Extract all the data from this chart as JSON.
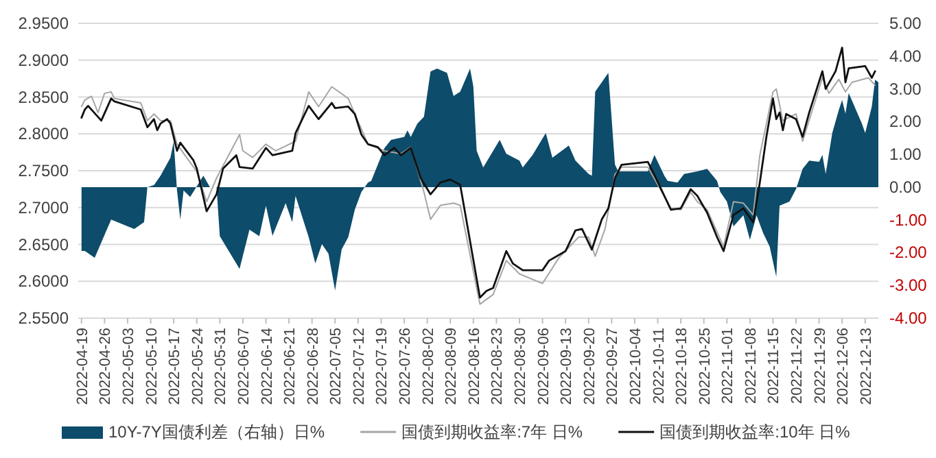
{
  "chart_data": {
    "type": "line",
    "xlim": [
      "2022-04-18",
      "2022-12-17"
    ],
    "xticks": [
      "2022-04-19",
      "2022-04-26",
      "2022-05-03",
      "2022-05-10",
      "2022-05-17",
      "2022-05-24",
      "2022-05-31",
      "2022-06-07",
      "2022-06-14",
      "2022-06-21",
      "2022-06-28",
      "2022-07-05",
      "2022-07-12",
      "2022-07-19",
      "2022-07-26",
      "2022-08-02",
      "2022-08-09",
      "2022-08-16",
      "2022-08-23",
      "2022-08-30",
      "2022-09-06",
      "2022-09-13",
      "2022-09-20",
      "2022-09-27",
      "2022-10-04",
      "2022-10-11",
      "2022-10-18",
      "2022-10-25",
      "2022-11-01",
      "2022-11-08",
      "2022-11-15",
      "2022-11-22",
      "2022-11-29",
      "2022-12-06",
      "2022-12-13"
    ],
    "ylim": [
      2.55,
      2.95
    ],
    "yticks": [
      {
        "value": 2.55,
        "label": "2.5500"
      },
      {
        "value": 2.6,
        "label": "2.6000"
      },
      {
        "value": 2.65,
        "label": "2.6500"
      },
      {
        "value": 2.7,
        "label": "2.7000"
      },
      {
        "value": 2.75,
        "label": "2.7500"
      },
      {
        "value": 2.8,
        "label": "2.8000"
      },
      {
        "value": 2.85,
        "label": "2.8500"
      },
      {
        "value": 2.9,
        "label": "2.9000"
      },
      {
        "value": 2.95,
        "label": "2.9500"
      }
    ],
    "y2lim": [
      -4,
      5
    ],
    "y2ticks": [
      {
        "value": -4,
        "label": "-4.00"
      },
      {
        "value": -3,
        "label": "-3.00"
      },
      {
        "value": -2,
        "label": "-2.00"
      },
      {
        "value": -1,
        "label": "-1.00"
      },
      {
        "value": 0,
        "label": "0.00"
      },
      {
        "value": 1,
        "label": "1.00"
      },
      {
        "value": 2,
        "label": "2.00"
      },
      {
        "value": 3,
        "label": "3.00"
      },
      {
        "value": 4,
        "label": "4.00"
      },
      {
        "value": 5,
        "label": "5.00"
      }
    ],
    "grid": "y",
    "legend": "bottom",
    "series": [
      {
        "name": "10Y-7Y国债利差（右轴）日%",
        "type": "area",
        "axis": "y2",
        "color": "#0d4c6a",
        "x": [
          "2022-04-19",
          "2022-04-20",
          "2022-04-23",
          "2022-04-28",
          "2022-05-05",
          "2022-05-08",
          "2022-05-09",
          "2022-05-11",
          "2022-05-13",
          "2022-05-16",
          "2022-05-17",
          "2022-05-18",
          "2022-05-19",
          "2022-05-20",
          "2022-05-22",
          "2022-05-26",
          "2022-05-28",
          "2022-05-30",
          "2022-05-31",
          "2022-06-06",
          "2022-06-09",
          "2022-06-12",
          "2022-06-14",
          "2022-06-16",
          "2022-06-20",
          "2022-06-22",
          "2022-06-23",
          "2022-06-27",
          "2022-06-29",
          "2022-07-01",
          "2022-07-03",
          "2022-07-05",
          "2022-07-07",
          "2022-07-09",
          "2022-07-11",
          "2022-07-13",
          "2022-07-15",
          "2022-07-16",
          "2022-07-20",
          "2022-07-22",
          "2022-07-26",
          "2022-07-27",
          "2022-07-28",
          "2022-07-30",
          "2022-08-01",
          "2022-08-03",
          "2022-08-05",
          "2022-08-08",
          "2022-08-10",
          "2022-08-12",
          "2022-08-15",
          "2022-08-16",
          "2022-08-17",
          "2022-08-19",
          "2022-08-24",
          "2022-08-26",
          "2022-08-30",
          "2022-08-31",
          "2022-09-03",
          "2022-09-07",
          "2022-09-09",
          "2022-09-14",
          "2022-09-16",
          "2022-09-20",
          "2022-09-21",
          "2022-09-22",
          "2022-09-26",
          "2022-09-28",
          "2022-09-29",
          "2022-10-08",
          "2022-10-10",
          "2022-10-13",
          "2022-10-14",
          "2022-10-17",
          "2022-10-19",
          "2022-10-23",
          "2022-10-26",
          "2022-10-29",
          "2022-10-30",
          "2022-11-01",
          "2022-11-03",
          "2022-11-06",
          "2022-11-08",
          "2022-11-10",
          "2022-11-12",
          "2022-11-14",
          "2022-11-16",
          "2022-11-17",
          "2022-11-20",
          "2022-11-22",
          "2022-11-24",
          "2022-11-26",
          "2022-11-29",
          "2022-11-30",
          "2022-12-01",
          "2022-12-03",
          "2022-12-05",
          "2022-12-06",
          "2022-12-07",
          "2022-12-08",
          "2022-12-12",
          "2022-12-13",
          "2022-12-15",
          "2022-12-16",
          "2022-12-17"
        ],
        "values": [
          -1.95,
          -1.95,
          -2.16,
          -0.99,
          -1.28,
          -1.07,
          0,
          0.06,
          0.35,
          0.9,
          1.4,
          -0.1,
          -0.99,
          -0.1,
          -0.3,
          0.35,
          0,
          0,
          -1.5,
          -2.5,
          -1.3,
          -1.5,
          -0.57,
          -1.49,
          -0.49,
          -1.07,
          -0.27,
          -1.53,
          -2.33,
          -1.74,
          -2.03,
          -3.16,
          -1.9,
          -1.53,
          -0.69,
          -0.15,
          0.14,
          0.19,
          1.19,
          1.44,
          1.53,
          1.73,
          1.53,
          1.94,
          2.15,
          3.53,
          3.62,
          3.49,
          2.78,
          2.91,
          3.62,
          3.07,
          1.11,
          0.6,
          1.44,
          1.02,
          0.81,
          0.6,
          0.98,
          1.65,
          0.9,
          1.27,
          0.81,
          0.4,
          0.35,
          2.91,
          3.49,
          0.69,
          0.48,
          0.48,
          0.98,
          0.35,
          0.19,
          0.14,
          0.4,
          0.48,
          0.56,
          0.19,
          -0.15,
          -0.44,
          -1.2,
          -0.86,
          -1.61,
          -0.86,
          -1.4,
          -1.82,
          -2.74,
          -0.57,
          -0.44,
          -0.06,
          0.56,
          0.81,
          0.77,
          0.98,
          0.4,
          1.65,
          2.36,
          2.66,
          2.24,
          2.87,
          1.94,
          1.65,
          2.45,
          3.28,
          3.2
        ]
      },
      {
        "name": "国债到期收益率:7年 日%",
        "color": "#a6a6a6",
        "x": [
          "2022-04-19",
          "2022-04-20",
          "2022-04-22",
          "2022-04-24",
          "2022-04-26",
          "2022-04-28",
          "2022-04-29",
          "2022-05-07",
          "2022-05-09",
          "2022-05-11",
          "2022-05-13",
          "2022-05-16",
          "2022-05-18",
          "2022-05-24",
          "2022-05-27",
          "2022-05-30",
          "2022-06-06",
          "2022-06-07",
          "2022-06-10",
          "2022-06-14",
          "2022-06-17",
          "2022-06-23",
          "2022-06-27",
          "2022-06-30",
          "2022-07-04",
          "2022-07-09",
          "2022-07-11",
          "2022-07-15",
          "2022-07-20",
          "2022-07-25",
          "2022-07-28",
          "2022-08-01",
          "2022-08-03",
          "2022-08-06",
          "2022-08-10",
          "2022-08-12",
          "2022-08-18",
          "2022-08-22",
          "2022-08-26",
          "2022-08-30",
          "2022-09-06",
          "2022-09-11",
          "2022-09-17",
          "2022-09-20",
          "2022-09-22",
          "2022-09-25",
          "2022-09-28",
          "2022-09-30",
          "2022-10-08",
          "2022-10-15",
          "2022-10-18",
          "2022-10-21",
          "2022-10-23",
          "2022-10-26",
          "2022-10-31",
          "2022-11-03",
          "2022-11-06",
          "2022-11-09",
          "2022-11-11",
          "2022-11-15",
          "2022-11-16",
          "2022-11-18",
          "2022-11-22",
          "2022-11-24",
          "2022-11-27",
          "2022-11-30",
          "2022-12-02",
          "2022-12-05",
          "2022-12-07",
          "2022-12-09",
          "2022-12-14",
          "2022-12-16"
        ],
        "values": [
          2.837,
          2.846,
          2.851,
          2.829,
          2.855,
          2.857,
          2.848,
          2.842,
          2.818,
          2.827,
          2.818,
          2.818,
          2.786,
          2.749,
          2.708,
          2.74,
          2.799,
          2.777,
          2.768,
          2.786,
          2.777,
          2.79,
          2.857,
          2.837,
          2.864,
          2.848,
          2.827,
          2.786,
          2.777,
          2.773,
          2.782,
          2.721,
          2.684,
          2.703,
          2.706,
          2.703,
          2.569,
          2.582,
          2.628,
          2.61,
          2.597,
          2.632,
          2.66,
          2.66,
          2.634,
          2.671,
          2.745,
          2.755,
          2.755,
          2.699,
          2.697,
          2.721,
          2.708,
          2.697,
          2.647,
          2.708,
          2.706,
          2.69,
          2.771,
          2.857,
          2.861,
          2.818,
          2.827,
          2.79,
          2.833,
          2.876,
          2.855,
          2.874,
          2.857,
          2.87,
          2.876,
          2.866
        ]
      },
      {
        "name": "国债到期收益率:10年 日%",
        "color": "#111111",
        "x": [
          "2022-04-19",
          "2022-04-20",
          "2022-04-21",
          "2022-04-25",
          "2022-04-28",
          "2022-04-29",
          "2022-05-07",
          "2022-05-09",
          "2022-05-11",
          "2022-05-12",
          "2022-05-13",
          "2022-05-15",
          "2022-05-16",
          "2022-05-18",
          "2022-05-19",
          "2022-05-23",
          "2022-05-24",
          "2022-05-27",
          "2022-05-30",
          "2022-06-01",
          "2022-06-05",
          "2022-06-06",
          "2022-06-10",
          "2022-06-14",
          "2022-06-16",
          "2022-06-22",
          "2022-06-23",
          "2022-06-27",
          "2022-06-30",
          "2022-07-04",
          "2022-07-05",
          "2022-07-09",
          "2022-07-11",
          "2022-07-13",
          "2022-07-15",
          "2022-07-18",
          "2022-07-20",
          "2022-07-23",
          "2022-07-25",
          "2022-07-28",
          "2022-07-31",
          "2022-08-03",
          "2022-08-06",
          "2022-08-09",
          "2022-08-12",
          "2022-08-18",
          "2022-08-20",
          "2022-08-22",
          "2022-08-26",
          "2022-08-28",
          "2022-08-31",
          "2022-09-06",
          "2022-09-08",
          "2022-09-13",
          "2022-09-16",
          "2022-09-18",
          "2022-09-21",
          "2022-09-24",
          "2022-09-26",
          "2022-09-28",
          "2022-09-30",
          "2022-10-08",
          "2022-10-10",
          "2022-10-15",
          "2022-10-18",
          "2022-10-21",
          "2022-10-23",
          "2022-10-26",
          "2022-10-29",
          "2022-10-31",
          "2022-11-03",
          "2022-11-06",
          "2022-11-09",
          "2022-11-11",
          "2022-11-13",
          "2022-11-15",
          "2022-11-16",
          "2022-11-17",
          "2022-11-18",
          "2022-11-19",
          "2022-11-22",
          "2022-11-24",
          "2022-11-26",
          "2022-11-30",
          "2022-12-01",
          "2022-12-04",
          "2022-12-06",
          "2022-12-07",
          "2022-12-08",
          "2022-12-13",
          "2022-12-15",
          "2022-12-16"
        ],
        "values": [
          2.822,
          2.833,
          2.838,
          2.818,
          2.848,
          2.844,
          2.833,
          2.809,
          2.82,
          2.805,
          2.814,
          2.82,
          2.814,
          2.777,
          2.788,
          2.764,
          2.753,
          2.695,
          2.718,
          2.753,
          2.771,
          2.755,
          2.753,
          2.781,
          2.771,
          2.777,
          2.801,
          2.838,
          2.82,
          2.842,
          2.835,
          2.837,
          2.827,
          2.799,
          2.786,
          2.782,
          2.771,
          2.781,
          2.771,
          2.781,
          2.74,
          2.718,
          2.734,
          2.738,
          2.731,
          2.578,
          2.587,
          2.591,
          2.641,
          2.624,
          2.615,
          2.615,
          2.628,
          2.641,
          2.669,
          2.671,
          2.643,
          2.684,
          2.699,
          2.74,
          2.758,
          2.762,
          2.744,
          2.697,
          2.699,
          2.725,
          2.716,
          2.693,
          2.66,
          2.641,
          2.69,
          2.699,
          2.68,
          2.734,
          2.796,
          2.848,
          2.82,
          2.829,
          2.805,
          2.827,
          2.82,
          2.796,
          2.829,
          2.885,
          2.861,
          2.885,
          2.917,
          2.87,
          2.889,
          2.892,
          2.876,
          2.885
        ]
      }
    ]
  }
}
